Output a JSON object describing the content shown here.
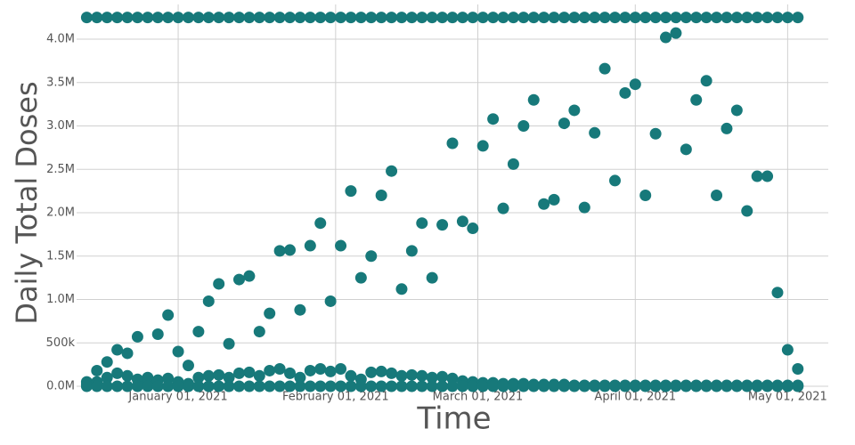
{
  "chart_data": {
    "type": "scatter",
    "x_label": "Time",
    "y_label": "Daily Total Doses",
    "x": [
      "2020-12-14",
      "2020-12-16",
      "2020-12-18",
      "2020-12-20",
      "2020-12-22",
      "2020-12-24",
      "2020-12-26",
      "2020-12-28",
      "2020-12-30",
      "2021-01-01",
      "2021-01-03",
      "2021-01-05",
      "2021-01-07",
      "2021-01-09",
      "2021-01-11",
      "2021-01-13",
      "2021-01-15",
      "2021-01-17",
      "2021-01-19",
      "2021-01-21",
      "2021-01-23",
      "2021-01-25",
      "2021-01-27",
      "2021-01-29",
      "2021-01-31",
      "2021-02-02",
      "2021-02-04",
      "2021-02-06",
      "2021-02-08",
      "2021-02-10",
      "2021-02-12",
      "2021-02-14",
      "2021-02-16",
      "2021-02-18",
      "2021-02-20",
      "2021-02-22",
      "2021-02-24",
      "2021-02-26",
      "2021-02-28",
      "2021-03-02",
      "2021-03-04",
      "2021-03-06",
      "2021-03-08",
      "2021-03-10",
      "2021-03-12",
      "2021-03-14",
      "2021-03-16",
      "2021-03-18",
      "2021-03-20",
      "2021-03-22",
      "2021-03-24",
      "2021-03-26",
      "2021-03-28",
      "2021-03-30",
      "2021-04-01",
      "2021-04-03",
      "2021-04-05",
      "2021-04-07",
      "2021-04-09",
      "2021-04-11",
      "2021-04-13",
      "2021-04-15",
      "2021-04-17",
      "2021-04-19",
      "2021-04-21",
      "2021-04-23",
      "2021-04-25",
      "2021-04-27",
      "2021-04-29",
      "2021-05-01",
      "2021-05-03"
    ],
    "series": [
      {
        "color": "#17797a",
        "values": [
          4250000,
          4250000,
          4250000,
          4250000,
          4250000,
          4250000,
          4250000,
          4250000,
          4250000,
          4250000,
          4250000,
          4250000,
          4250000,
          4250000,
          4250000,
          4250000,
          4250000,
          4250000,
          4250000,
          4250000,
          4250000,
          4250000,
          4250000,
          4250000,
          4250000,
          4250000,
          4250000,
          4250000,
          4250000,
          4250000,
          4250000,
          4250000,
          4250000,
          4250000,
          4250000,
          4250000,
          4250000,
          4250000,
          4250000,
          4250000,
          4250000,
          4250000,
          4250000,
          4250000,
          4250000,
          4250000,
          4250000,
          4250000,
          4250000,
          4250000,
          4250000,
          4250000,
          4250000,
          4250000,
          4250000,
          4250000,
          4250000,
          4250000,
          4250000,
          4250000,
          4250000,
          4250000,
          4250000,
          4250000,
          4250000,
          4250000,
          4250000,
          4250000,
          4250000,
          4250000,
          4250000
        ]
      },
      {
        "color": "#17797a",
        "values": [
          50000,
          180000,
          280000,
          420000,
          380000,
          570000,
          100000,
          600000,
          820000,
          400000,
          240000,
          630000,
          980000,
          1180000,
          490000,
          1230000,
          1270000,
          630000,
          840000,
          1560000,
          1570000,
          880000,
          1620000,
          1880000,
          980000,
          1620000,
          2250000,
          1250000,
          1500000,
          2200000,
          2480000,
          1120000,
          1560000,
          1880000,
          1250000,
          1860000,
          2800000,
          1900000,
          1820000,
          2770000,
          3080000,
          2050000,
          2560000,
          3000000,
          3300000,
          2100000,
          2150000,
          3030000,
          3180000,
          2060000,
          2920000,
          3660000,
          2370000,
          3380000,
          3480000,
          2200000,
          2910000,
          4020000,
          4070000,
          2730000,
          3300000,
          3520000,
          2200000,
          2970000,
          3180000,
          2020000,
          2420000,
          2420000,
          1080000,
          420000,
          200000
        ]
      },
      {
        "color": "#17797a",
        "values": [
          20000,
          50000,
          100000,
          150000,
          120000,
          80000,
          50000,
          70000,
          90000,
          50000,
          30000,
          100000,
          120000,
          130000,
          100000,
          150000,
          160000,
          120000,
          180000,
          200000,
          150000,
          100000,
          180000,
          200000,
          170000,
          200000,
          120000,
          80000,
          160000,
          170000,
          150000,
          120000,
          130000,
          120000,
          100000,
          110000,
          90000,
          60000,
          50000,
          40000,
          40000,
          30000,
          30000,
          30000,
          20000,
          20000,
          20000,
          20000,
          10000,
          10000,
          10000,
          10000,
          10000,
          10000,
          10000,
          10000,
          10000,
          10000,
          10000,
          10000,
          10000,
          10000,
          10000,
          10000,
          10000,
          10000,
          10000,
          10000,
          10000,
          10000,
          10000
        ]
      },
      {
        "color": "#17797a",
        "values": [
          0,
          0,
          0,
          0,
          0,
          0,
          0,
          0,
          0,
          0,
          0,
          0,
          0,
          0,
          0,
          0,
          0,
          0,
          0,
          0,
          0,
          0,
          0,
          0,
          0,
          0,
          0,
          0,
          0,
          0,
          0,
          0,
          0,
          0,
          0,
          0,
          0,
          0,
          0,
          0,
          0,
          0,
          0,
          0,
          0,
          0,
          0,
          0,
          0,
          0,
          0,
          0,
          0,
          0,
          0,
          0,
          0,
          0,
          0,
          0,
          0,
          0,
          0,
          0,
          0,
          0,
          0,
          0,
          0,
          0,
          0
        ]
      }
    ],
    "xlim": [
      "2020-12-12",
      "2021-05-09"
    ],
    "xticks": [
      {
        "value": "2021-01-01",
        "label": "January 01, 2021"
      },
      {
        "value": "2021-02-01",
        "label": "February 01, 2021"
      },
      {
        "value": "2021-03-01",
        "label": "March 01, 2021"
      },
      {
        "value": "2021-04-01",
        "label": "April 01, 2021"
      },
      {
        "value": "2021-05-01",
        "label": "May 01, 2021"
      }
    ],
    "ylim": [
      0,
      4400000
    ],
    "yticks": [
      {
        "value": 0,
        "label": "0.0M"
      },
      {
        "value": 500000,
        "label": "500k"
      },
      {
        "value": 1000000,
        "label": "1.0M"
      },
      {
        "value": 1500000,
        "label": "1.5M"
      },
      {
        "value": 2000000,
        "label": "2.0M"
      },
      {
        "value": 2500000,
        "label": "2.5M"
      },
      {
        "value": 3000000,
        "label": "3.0M"
      },
      {
        "value": 3500000,
        "label": "3.5M"
      },
      {
        "value": 4000000,
        "label": "4.0M"
      }
    ],
    "grid": true
  }
}
